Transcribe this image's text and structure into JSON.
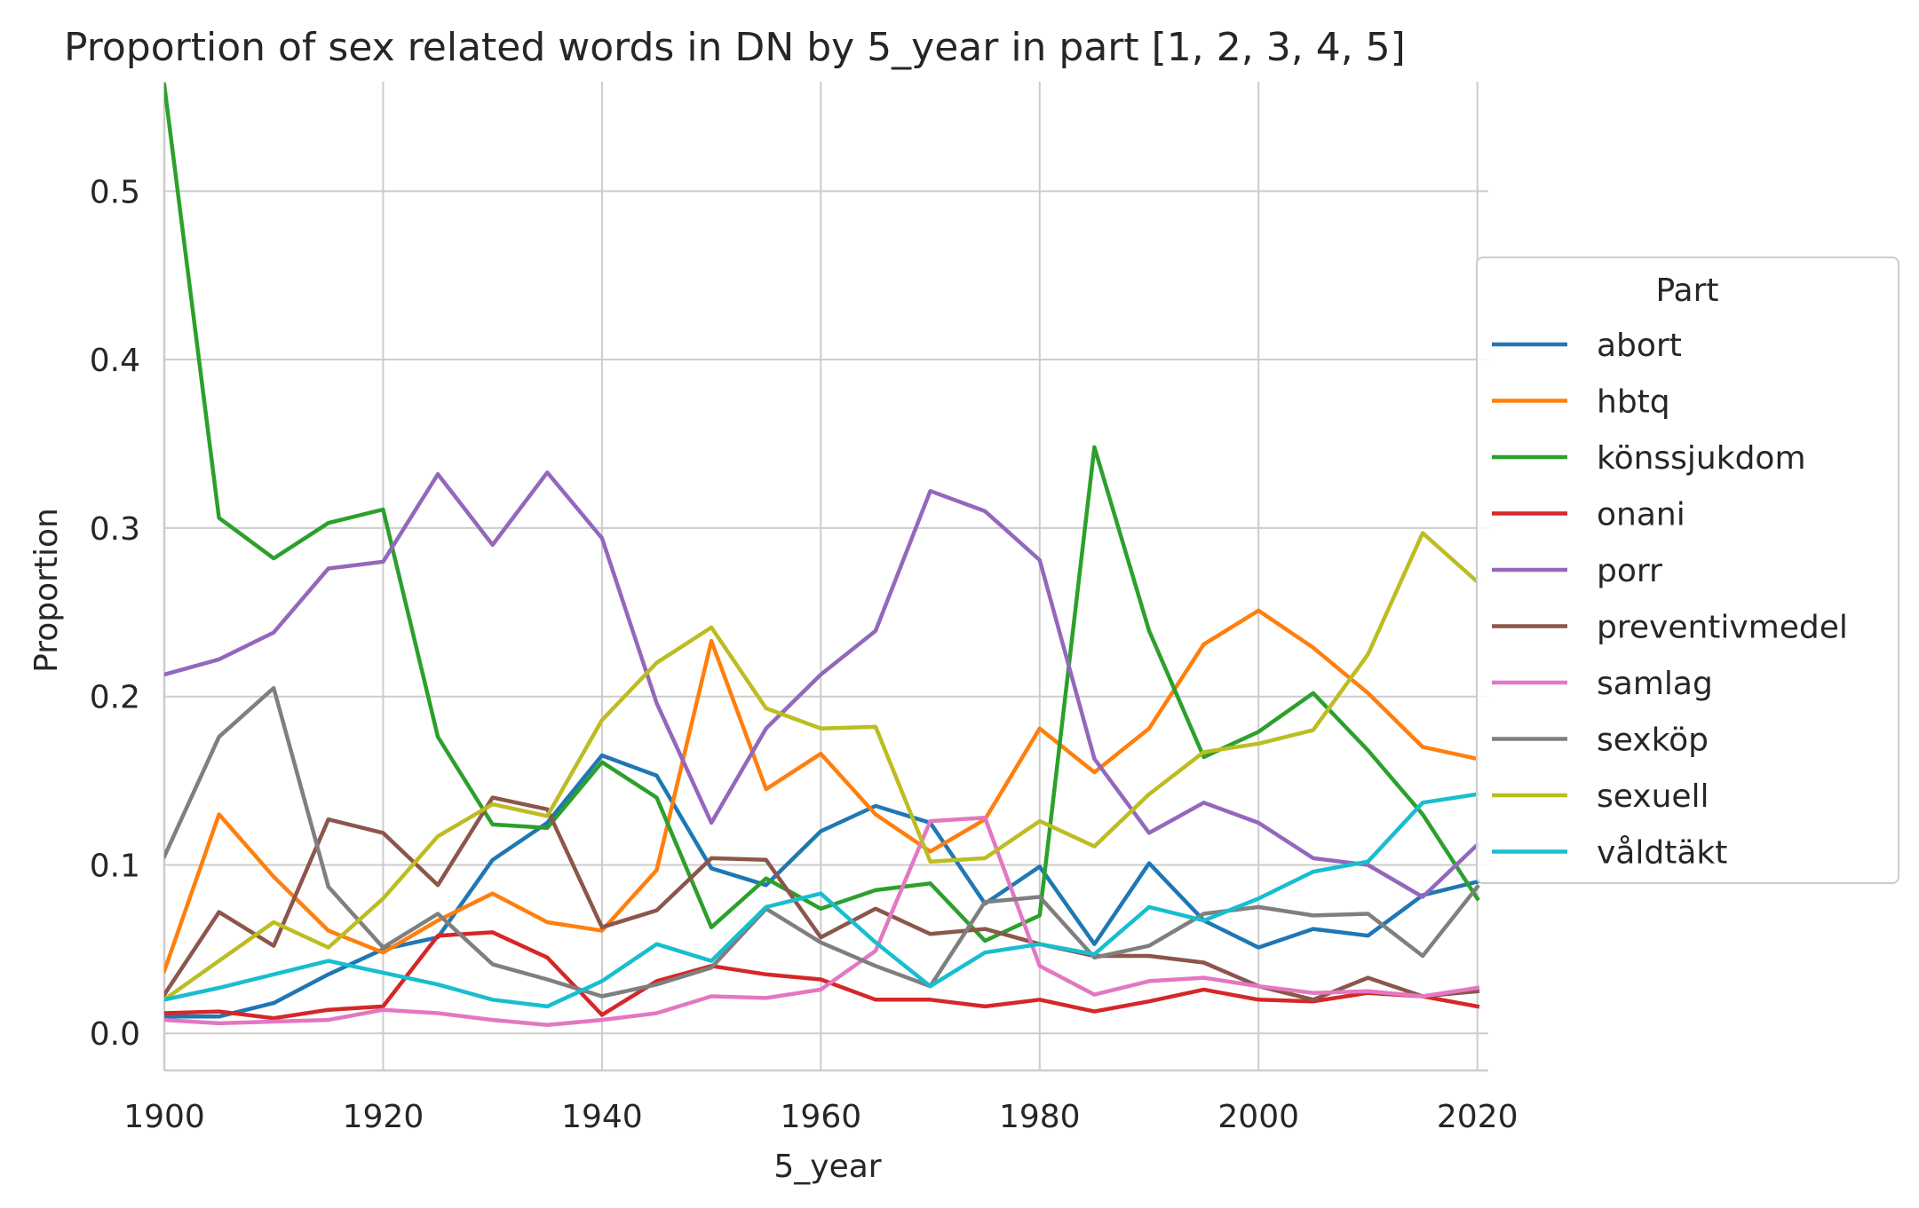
{
  "chart_data": {
    "type": "line",
    "title": "Proportion of sex related words in DN by 5_year in part [1, 2, 3, 4, 5]",
    "xlabel": "5_year",
    "ylabel": "Proportion",
    "xlim": [
      1900,
      2021
    ],
    "ylim": [
      -0.022,
      0.565
    ],
    "xticks": [
      1900,
      1920,
      1940,
      1960,
      1980,
      2000,
      2020
    ],
    "yticks": [
      0.0,
      0.1,
      0.2,
      0.3,
      0.4,
      0.5
    ],
    "ytick_labels": [
      "0.0",
      "0.1",
      "0.2",
      "0.3",
      "0.4",
      "0.5"
    ],
    "grid": true,
    "legend": {
      "title": "Part",
      "placement": "center-right"
    },
    "x": [
      1900,
      1905,
      1910,
      1915,
      1920,
      1925,
      1930,
      1935,
      1940,
      1945,
      1950,
      1955,
      1960,
      1965,
      1970,
      1975,
      1980,
      1985,
      1990,
      1995,
      2000,
      2005,
      2010,
      2015,
      2020
    ],
    "series": [
      {
        "name": "abort",
        "color": "#1f77b4",
        "values": [
          0.01,
          0.01,
          0.018,
          0.035,
          0.05,
          0.057,
          0.103,
          0.125,
          0.165,
          0.153,
          0.098,
          0.088,
          0.12,
          0.135,
          0.125,
          0.077,
          0.099,
          0.053,
          0.101,
          0.067,
          0.051,
          0.062,
          0.058,
          0.082,
          0.09
        ]
      },
      {
        "name": "hbtq",
        "color": "#ff7f0e",
        "values": [
          0.037,
          0.13,
          0.093,
          0.061,
          0.048,
          0.067,
          0.083,
          0.066,
          0.061,
          0.097,
          0.233,
          0.145,
          0.166,
          0.13,
          0.108,
          0.127,
          0.181,
          0.155,
          0.181,
          0.231,
          0.251,
          0.229,
          0.202,
          0.17,
          0.163
        ]
      },
      {
        "name": "könssjukdom",
        "color": "#2ca02c",
        "values": [
          0.563,
          0.306,
          0.282,
          0.303,
          0.311,
          0.176,
          0.124,
          0.122,
          0.161,
          0.14,
          0.063,
          0.092,
          0.074,
          0.085,
          0.089,
          0.055,
          0.07,
          0.348,
          0.239,
          0.164,
          0.179,
          0.202,
          0.168,
          0.13,
          0.08
        ]
      },
      {
        "name": "onani",
        "color": "#d62728",
        "values": [
          0.012,
          0.013,
          0.009,
          0.014,
          0.016,
          0.058,
          0.06,
          0.045,
          0.011,
          0.031,
          0.04,
          0.035,
          0.032,
          0.02,
          0.02,
          0.016,
          0.02,
          0.013,
          0.019,
          0.026,
          0.02,
          0.019,
          0.024,
          0.022,
          0.016
        ]
      },
      {
        "name": "porr",
        "color": "#9467bd",
        "values": [
          0.213,
          0.222,
          0.238,
          0.276,
          0.28,
          0.332,
          0.29,
          0.333,
          0.294,
          0.196,
          0.125,
          0.181,
          0.213,
          0.239,
          0.322,
          0.31,
          0.281,
          0.163,
          0.119,
          0.137,
          0.125,
          0.104,
          0.1,
          0.081,
          0.112
        ]
      },
      {
        "name": "preventivmedel",
        "color": "#8c564b",
        "values": [
          0.023,
          0.072,
          0.052,
          0.127,
          0.119,
          0.088,
          0.14,
          0.133,
          0.063,
          0.073,
          0.104,
          0.103,
          0.057,
          0.074,
          0.059,
          0.062,
          0.053,
          0.046,
          0.046,
          0.042,
          0.028,
          0.02,
          0.033,
          0.022,
          0.025
        ]
      },
      {
        "name": "samlag",
        "color": "#e377c2",
        "values": [
          0.008,
          0.006,
          0.007,
          0.008,
          0.014,
          0.012,
          0.008,
          0.005,
          0.008,
          0.012,
          0.022,
          0.021,
          0.026,
          0.049,
          0.126,
          0.128,
          0.04,
          0.023,
          0.031,
          0.033,
          0.028,
          0.024,
          0.025,
          0.022,
          0.027
        ]
      },
      {
        "name": "sexköp",
        "color": "#7f7f7f",
        "values": [
          0.105,
          0.176,
          0.205,
          0.087,
          0.051,
          0.071,
          0.041,
          0.032,
          0.022,
          0.029,
          0.039,
          0.074,
          0.054,
          0.04,
          0.028,
          0.078,
          0.081,
          0.045,
          0.052,
          0.071,
          0.075,
          0.07,
          0.071,
          0.046,
          0.087
        ]
      },
      {
        "name": "sexuell",
        "color": "#bcbd22",
        "values": [
          0.02,
          0.043,
          0.066,
          0.051,
          0.08,
          0.117,
          0.136,
          0.129,
          0.186,
          0.22,
          0.241,
          0.193,
          0.181,
          0.182,
          0.102,
          0.104,
          0.126,
          0.111,
          0.142,
          0.167,
          0.172,
          0.18,
          0.225,
          0.297,
          0.268
        ]
      },
      {
        "name": "våldtäkt",
        "color": "#17becf",
        "values": [
          0.02,
          0.027,
          0.035,
          0.043,
          0.036,
          0.029,
          0.02,
          0.016,
          0.031,
          0.053,
          0.043,
          0.075,
          0.083,
          0.054,
          0.028,
          0.048,
          0.053,
          0.047,
          0.075,
          0.067,
          0.08,
          0.096,
          0.102,
          0.137,
          0.142
        ]
      }
    ]
  }
}
